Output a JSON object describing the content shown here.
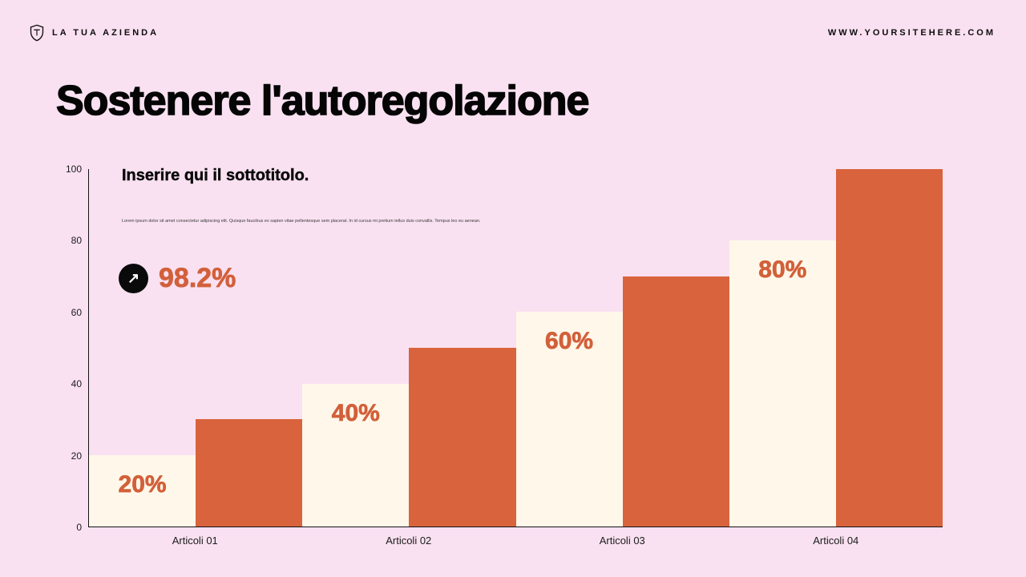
{
  "header": {
    "brand": "LA TUA AZIENDA",
    "website": "WWW.YOURSITEHERE.COM",
    "logo_icon": "shield-icon"
  },
  "title": "Sostenere l'autoregolazione",
  "subtitle": "Inserire qui il sottotitolo.",
  "body_text": "Lorem ipsum dolor sit amet consectetur adipiscing elit. Quisque faucibus ex sapien vitae pellentesque sem placerat. In id cursus mi pretium tellus duis convallis. Tempus leo eu aenean.",
  "stat": {
    "value": "98.2%",
    "icon": "arrow-up-right-icon"
  },
  "colors": {
    "background": "#f9e1f1",
    "bar_light": "#fff8ea",
    "bar_orange": "#d9633c",
    "accent_text": "#d2603a",
    "text": "#111111"
  },
  "chart_data": {
    "type": "bar",
    "categories": [
      "Articoli 01",
      "Articoli 02",
      "Articoli 03",
      "Articoli 04"
    ],
    "series": [
      {
        "name": "light",
        "values": [
          20,
          40,
          60,
          80
        ],
        "labels": [
          "20%",
          "40%",
          "60%",
          "80%"
        ]
      },
      {
        "name": "orange",
        "values": [
          30,
          50,
          70,
          100
        ],
        "labels": [
          "",
          "",
          "",
          ""
        ]
      }
    ],
    "title": "",
    "xlabel": "",
    "ylabel": "",
    "ylim": [
      0,
      100
    ],
    "yticks": [
      0,
      20,
      40,
      60,
      80,
      100
    ],
    "grid": false,
    "legend": false
  }
}
